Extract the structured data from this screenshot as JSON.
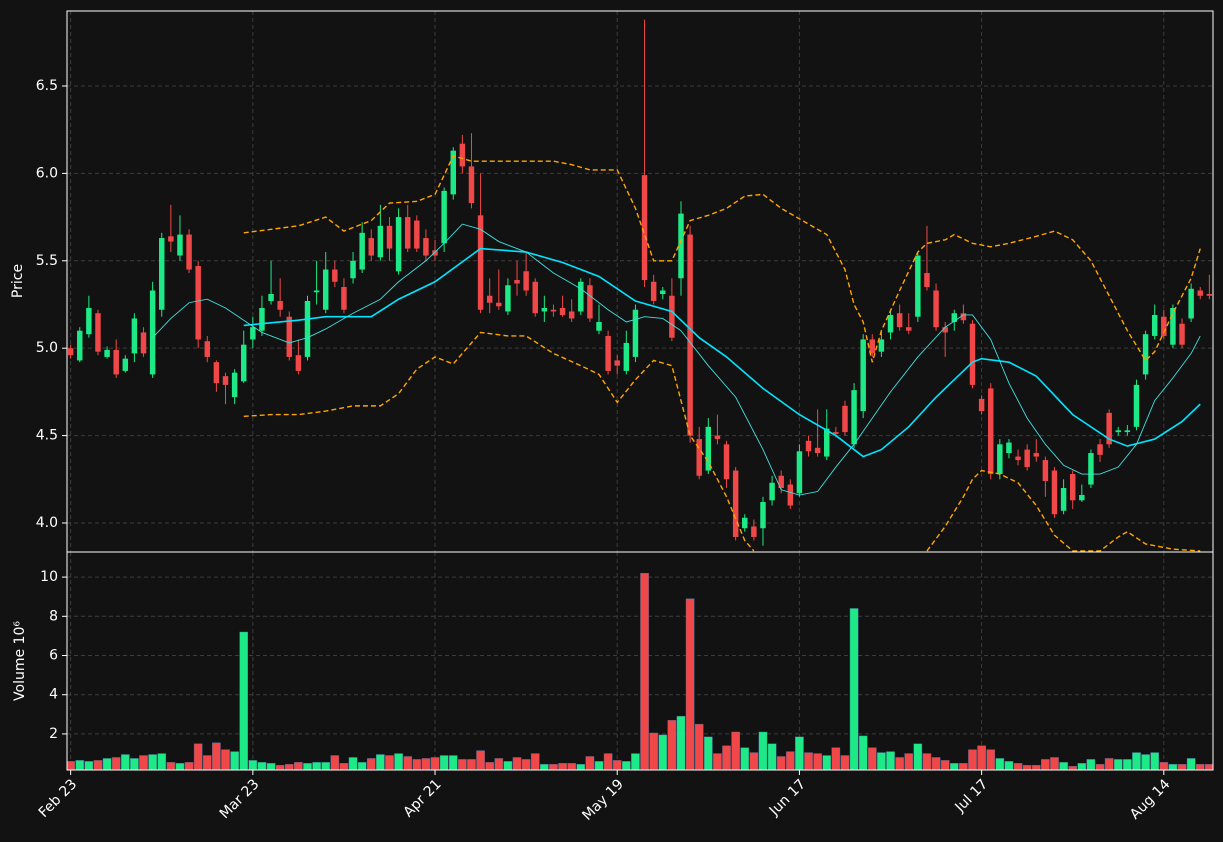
{
  "chart_data": [
    {
      "type": "candlestick",
      "ylabel": "Price",
      "up_color": "#1de986",
      "down_color": "#f04848",
      "xlim": [
        -0.4,
        125.4
      ],
      "ylim": [
        3.834,
        6.929
      ],
      "yticks": [
        {
          "value": 4,
          "label": "4.0"
        },
        4.5,
        {
          "value": 5,
          "label": "5.0"
        },
        5.5,
        {
          "value": 6,
          "label": "6.0"
        },
        6.5
      ],
      "grid": true,
      "open": [
        5.0,
        4.93,
        5.08,
        5.2,
        4.95,
        4.99,
        4.87,
        4.97,
        5.09,
        4.85,
        5.22,
        5.64,
        5.53,
        5.65,
        5.47,
        5.04,
        4.92,
        4.84,
        4.72,
        4.81,
        5.05,
        5.1,
        5.27,
        5.27,
        5.18,
        4.96,
        4.95,
        5.32,
        5.22,
        5.45,
        5.35,
        5.4,
        5.45,
        5.63,
        5.52,
        5.7,
        5.44,
        5.75,
        5.73,
        5.63,
        5.56,
        5.6,
        5.88,
        6.17,
        6.04,
        5.76,
        5.3,
        5.26,
        5.21,
        5.39,
        5.44,
        5.38,
        5.21,
        5.22,
        5.23,
        5.21,
        5.21,
        5.36,
        5.1,
        5.07,
        4.93,
        4.87,
        4.95,
        5.99,
        5.38,
        5.31,
        5.3,
        5.4,
        5.65,
        4.48,
        4.3,
        4.5,
        4.45,
        4.3,
        3.97,
        3.98,
        3.97,
        4.13,
        4.27,
        4.22,
        4.17,
        4.47,
        4.43,
        4.38,
        4.52,
        4.67,
        4.45,
        4.64,
        5.05,
        4.98,
        5.09,
        5.2,
        5.12,
        5.18,
        5.43,
        5.33,
        5.12,
        5.15,
        5.2,
        5.14,
        4.71,
        4.77,
        4.28,
        4.4,
        4.38,
        4.42,
        4.4,
        4.36,
        4.3,
        4.07,
        4.28,
        4.13,
        4.22,
        4.45,
        4.63,
        4.52,
        4.52,
        4.55,
        4.85,
        5.07,
        5.18,
        5.02,
        5.14,
        5.17,
        5.33,
        5.31
      ],
      "high": [
        5.02,
        5.12,
        5.3,
        5.22,
        5.01,
        5.05,
        4.96,
        5.2,
        5.12,
        5.38,
        5.66,
        5.82,
        5.76,
        5.68,
        5.5,
        5.07,
        4.93,
        4.86,
        4.88,
        5.1,
        5.18,
        5.3,
        5.5,
        5.4,
        5.21,
        5.05,
        5.3,
        5.5,
        5.55,
        5.5,
        5.4,
        5.55,
        5.72,
        5.68,
        5.82,
        5.75,
        5.8,
        5.82,
        5.76,
        5.68,
        5.62,
        5.92,
        6.15,
        6.22,
        6.23,
        6.0,
        5.4,
        5.45,
        5.4,
        5.5,
        5.55,
        5.4,
        5.3,
        5.25,
        5.3,
        5.28,
        5.4,
        5.4,
        5.25,
        5.1,
        4.96,
        5.1,
        5.25,
        6.88,
        5.42,
        5.35,
        5.4,
        5.84,
        5.7,
        4.55,
        4.6,
        4.62,
        4.47,
        4.32,
        4.05,
        4.02,
        4.15,
        4.27,
        4.3,
        4.25,
        4.45,
        4.5,
        4.65,
        4.65,
        4.55,
        4.7,
        4.8,
        5.08,
        5.08,
        5.1,
        5.22,
        5.25,
        5.2,
        5.55,
        5.7,
        5.37,
        5.15,
        5.22,
        5.25,
        5.16,
        4.73,
        4.8,
        4.48,
        4.48,
        4.42,
        4.45,
        4.48,
        4.38,
        4.32,
        4.25,
        4.3,
        4.22,
        4.42,
        4.48,
        4.65,
        4.55,
        4.56,
        4.82,
        5.1,
        5.25,
        5.22,
        5.25,
        5.17,
        5.37,
        5.35,
        5.42
      ],
      "low": [
        4.94,
        4.92,
        5.06,
        4.96,
        4.94,
        4.83,
        4.86,
        4.92,
        4.95,
        4.83,
        5.18,
        5.55,
        5.5,
        5.43,
        5.0,
        4.92,
        4.75,
        4.68,
        4.68,
        4.8,
        5.0,
        5.07,
        5.25,
        5.18,
        4.93,
        4.85,
        4.93,
        5.25,
        5.2,
        5.35,
        5.2,
        5.37,
        5.43,
        5.5,
        5.5,
        5.5,
        5.42,
        5.55,
        5.55,
        5.5,
        5.5,
        5.55,
        5.85,
        6.0,
        5.8,
        5.2,
        5.2,
        5.22,
        5.19,
        5.3,
        5.3,
        5.18,
        5.15,
        5.18,
        5.18,
        5.15,
        5.19,
        5.15,
        5.08,
        4.85,
        4.85,
        4.85,
        4.92,
        5.35,
        5.25,
        5.28,
        5.04,
        5.3,
        4.46,
        4.25,
        4.28,
        4.45,
        4.2,
        3.9,
        3.95,
        3.9,
        3.87,
        4.1,
        4.17,
        4.08,
        4.15,
        4.38,
        4.38,
        4.36,
        4.49,
        4.5,
        4.43,
        4.6,
        4.95,
        4.95,
        5.05,
        5.1,
        5.08,
        5.15,
        5.33,
        5.1,
        4.95,
        5.1,
        5.14,
        4.77,
        4.62,
        4.25,
        4.25,
        4.37,
        4.33,
        4.3,
        4.35,
        4.15,
        4.03,
        4.05,
        4.08,
        4.12,
        4.2,
        4.35,
        4.43,
        4.5,
        4.5,
        4.53,
        4.82,
        5.05,
        5.05,
        5.0,
        5.0,
        5.15,
        5.28,
        5.28
      ],
      "close": [
        4.96,
        5.1,
        5.23,
        4.98,
        4.99,
        4.85,
        4.94,
        5.17,
        4.97,
        5.33,
        5.63,
        5.61,
        5.65,
        5.45,
        5.05,
        4.95,
        4.8,
        4.79,
        4.86,
        5.02,
        5.12,
        5.23,
        5.31,
        5.22,
        4.95,
        4.87,
        5.27,
        5.33,
        5.45,
        5.38,
        5.22,
        5.5,
        5.66,
        5.53,
        5.7,
        5.57,
        5.75,
        5.57,
        5.57,
        5.53,
        5.53,
        5.9,
        6.13,
        6.04,
        5.83,
        5.22,
        5.26,
        5.24,
        5.36,
        5.37,
        5.33,
        5.2,
        5.23,
        5.21,
        5.19,
        5.17,
        5.38,
        5.17,
        5.15,
        4.87,
        4.9,
        5.03,
        5.22,
        5.39,
        5.27,
        5.33,
        5.06,
        5.77,
        4.5,
        4.27,
        4.55,
        4.48,
        4.25,
        3.92,
        4.03,
        3.92,
        4.12,
        4.23,
        4.2,
        4.1,
        4.41,
        4.41,
        4.4,
        4.54,
        4.51,
        4.52,
        4.76,
        5.05,
        4.97,
        5.05,
        5.19,
        5.12,
        5.1,
        5.53,
        5.35,
        5.12,
        5.09,
        5.2,
        5.16,
        4.79,
        4.64,
        4.28,
        4.45,
        4.46,
        4.36,
        4.32,
        4.38,
        4.24,
        4.05,
        4.2,
        4.13,
        4.16,
        4.4,
        4.39,
        4.45,
        4.53,
        4.53,
        4.79,
        5.08,
        5.19,
        5.07,
        5.23,
        5.02,
        5.34,
        5.3,
        5.3
      ],
      "lines": [
        {
          "color": "#00e5ff",
          "x": [
            19,
            25,
            28,
            33,
            36,
            40,
            45,
            50,
            54,
            58,
            62,
            66,
            69,
            72,
            76,
            80,
            84,
            86,
            87,
            89,
            92,
            95,
            99,
            100,
            103,
            106,
            110,
            114,
            116,
            119,
            122,
            124
          ],
          "values": [
            5.13,
            5.16,
            5.18,
            5.18,
            5.28,
            5.38,
            5.57,
            5.55,
            5.49,
            5.41,
            5.27,
            5.21,
            5.06,
            4.95,
            4.77,
            4.62,
            4.5,
            4.42,
            4.38,
            4.42,
            4.55,
            4.72,
            4.92,
            4.94,
            4.92,
            4.84,
            4.62,
            4.48,
            4.44,
            4.48,
            4.58,
            4.68
          ]
        },
        {
          "color": "#40e0e0",
          "x": [
            9,
            11,
            13,
            15,
            17,
            19,
            21,
            24,
            26,
            28,
            31,
            34,
            36,
            39,
            41,
            43,
            45,
            47,
            50,
            53,
            56,
            59,
            61,
            63,
            65,
            67,
            70,
            73,
            76,
            78,
            80,
            82,
            84,
            86,
            88,
            90,
            93,
            96,
            98,
            99,
            101,
            103,
            105,
            107,
            109,
            111,
            113,
            115,
            117,
            119,
            121,
            123,
            124
          ],
          "values": [
            5.06,
            5.17,
            5.26,
            5.28,
            5.23,
            5.16,
            5.09,
            5.03,
            5.06,
            5.11,
            5.2,
            5.28,
            5.38,
            5.5,
            5.6,
            5.71,
            5.68,
            5.61,
            5.55,
            5.43,
            5.34,
            5.22,
            5.15,
            5.18,
            5.17,
            5.1,
            4.9,
            4.72,
            4.42,
            4.19,
            4.16,
            4.18,
            4.32,
            4.45,
            4.6,
            4.75,
            4.95,
            5.12,
            5.19,
            5.19,
            5.05,
            4.8,
            4.6,
            4.45,
            4.33,
            4.28,
            4.28,
            4.32,
            4.45,
            4.7,
            4.83,
            4.97,
            5.07
          ]
        },
        {
          "color": "#ffa500",
          "dashed": true,
          "x": [
            19,
            22,
            25,
            28,
            30,
            33,
            35,
            38,
            40,
            42,
            44,
            47,
            50,
            53,
            55,
            57,
            60,
            62,
            64,
            66,
            68,
            70,
            72,
            74,
            76,
            78,
            80,
            83,
            85,
            86,
            87,
            88,
            89,
            91,
            93,
            94,
            96,
            97,
            99,
            101,
            103,
            106,
            108,
            110,
            112,
            114,
            116,
            118,
            119,
            121,
            123,
            124
          ],
          "values": [
            5.66,
            5.68,
            5.7,
            5.75,
            5.67,
            5.73,
            5.83,
            5.84,
            5.88,
            6.1,
            6.07,
            6.07,
            6.07,
            6.07,
            6.05,
            6.02,
            6.02,
            5.8,
            5.5,
            5.5,
            5.73,
            5.76,
            5.8,
            5.87,
            5.88,
            5.8,
            5.74,
            5.65,
            5.45,
            5.25,
            5.15,
            4.92,
            5.1,
            5.33,
            5.55,
            5.6,
            5.62,
            5.65,
            5.6,
            5.58,
            5.6,
            5.64,
            5.67,
            5.62,
            5.5,
            5.3,
            5.1,
            4.93,
            4.98,
            5.2,
            5.4,
            5.57
          ]
        },
        {
          "color": "#ffa500",
          "dashed": true,
          "x": [
            19,
            22,
            25,
            28,
            31,
            34,
            36,
            38,
            40,
            42,
            45,
            48,
            50,
            53,
            56,
            58,
            60,
            62,
            64,
            66,
            68,
            70,
            72,
            74,
            75,
            76,
            94,
            96,
            98,
            99,
            100,
            102,
            104,
            106,
            108,
            110,
            113,
            115,
            116,
            118,
            121,
            124
          ],
          "values": [
            4.61,
            4.62,
            4.62,
            4.64,
            4.67,
            4.67,
            4.74,
            4.88,
            4.95,
            4.91,
            5.09,
            5.07,
            5.07,
            4.97,
            4.9,
            4.85,
            4.69,
            4.82,
            4.93,
            4.9,
            4.5,
            4.35,
            4.15,
            3.9,
            3.84,
            null,
            3.84,
            3.98,
            4.15,
            4.25,
            4.3,
            4.28,
            4.23,
            4.1,
            3.93,
            3.84,
            3.84,
            3.92,
            3.95,
            3.88,
            3.85,
            3.84
          ]
        }
      ]
    },
    {
      "type": "bar",
      "ylabel": "Volume  10⁶",
      "xlim": [
        -0.4,
        125.4
      ],
      "ylim": [
        0.16,
        11.28
      ],
      "yticks": [
        2,
        4,
        6,
        8,
        10
      ],
      "grid": true,
      "xticks": [
        {
          "value": 0,
          "label": "Feb 23"
        },
        {
          "value": 20,
          "label": "Mar 23"
        },
        {
          "value": 40,
          "label": "Apr 21"
        },
        {
          "value": 60,
          "label": "May 19"
        },
        {
          "value": 80,
          "label": "Jun 17"
        },
        {
          "value": 100,
          "label": "Jul 17"
        },
        {
          "value": 120,
          "label": "Aug 14"
        }
      ],
      "values": [
        0.6,
        0.65,
        0.6,
        0.65,
        0.75,
        0.8,
        0.95,
        0.75,
        0.9,
        0.95,
        1.0,
        0.55,
        0.5,
        0.55,
        1.5,
        0.9,
        1.55,
        1.2,
        1.1,
        7.2,
        0.65,
        0.55,
        0.5,
        0.4,
        0.45,
        0.55,
        0.5,
        0.55,
        0.55,
        0.9,
        0.5,
        0.8,
        0.55,
        0.75,
        0.95,
        0.9,
        1.0,
        0.85,
        0.7,
        0.75,
        0.8,
        0.9,
        0.9,
        0.7,
        0.7,
        1.15,
        0.55,
        0.75,
        0.6,
        0.8,
        0.7,
        1.0,
        0.45,
        0.45,
        0.5,
        0.5,
        0.45,
        0.85,
        0.6,
        1.0,
        0.65,
        0.6,
        1.0,
        10.2,
        2.05,
        1.95,
        2.7,
        2.9,
        8.9,
        2.5,
        1.85,
        1.0,
        1.4,
        2.1,
        1.3,
        1.05,
        2.1,
        1.5,
        0.85,
        1.1,
        1.85,
        1.05,
        1.0,
        0.9,
        1.3,
        0.9,
        8.4,
        1.9,
        1.3,
        1.05,
        1.1,
        0.8,
        1.0,
        1.5,
        1.0,
        0.8,
        0.65,
        0.5,
        0.5,
        1.2,
        1.4,
        1.2,
        0.75,
        0.6,
        0.5,
        0.4,
        0.4,
        0.7,
        0.8,
        0.55,
        0.35,
        0.5,
        0.7,
        0.45,
        0.75,
        0.7,
        0.7,
        1.05,
        0.95,
        1.05,
        0.55,
        0.45,
        0.45,
        0.75,
        0.45,
        0.45
      ]
    }
  ]
}
